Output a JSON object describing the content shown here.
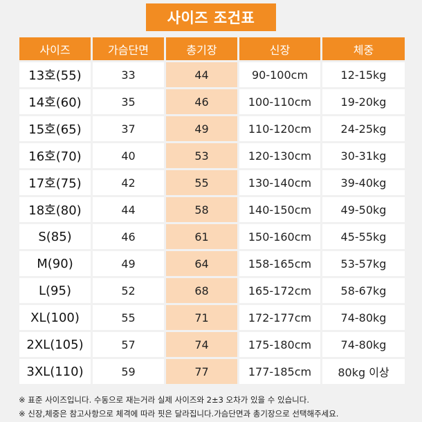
{
  "title": "사이즈 조건표",
  "columns": [
    "사이즈",
    "가슴단면",
    "총기장",
    "신장",
    "체중"
  ],
  "rows": [
    {
      "size": "13호(55)",
      "chest": "33",
      "length": "44",
      "height": "90-100cm",
      "weight": "12-15kg"
    },
    {
      "size": "14호(60)",
      "chest": "35",
      "length": "46",
      "height": "100-110cm",
      "weight": "19-20kg"
    },
    {
      "size": "15호(65)",
      "chest": "37",
      "length": "49",
      "height": "110-120cm",
      "weight": "24-25kg"
    },
    {
      "size": "16호(70)",
      "chest": "40",
      "length": "53",
      "height": "120-130cm",
      "weight": "30-31kg"
    },
    {
      "size": "17호(75)",
      "chest": "42",
      "length": "55",
      "height": "130-140cm",
      "weight": "39-40kg"
    },
    {
      "size": "18호(80)",
      "chest": "44",
      "length": "58",
      "height": "140-150cm",
      "weight": "49-50kg"
    },
    {
      "size": "S(85)",
      "chest": "46",
      "length": "61",
      "height": "150-160cm",
      "weight": "45-55kg"
    },
    {
      "size": "M(90)",
      "chest": "49",
      "length": "64",
      "height": "158-165cm",
      "weight": "53-57kg"
    },
    {
      "size": "L(95)",
      "chest": "52",
      "length": "68",
      "height": "165-172cm",
      "weight": "58-67kg"
    },
    {
      "size": "XL(100)",
      "chest": "55",
      "length": "71",
      "height": "172-177cm",
      "weight": "74-80kg"
    },
    {
      "size": "2XL(105)",
      "chest": "57",
      "length": "74",
      "height": "175-180cm",
      "weight": "74-80kg"
    },
    {
      "size": "3XL(110)",
      "chest": "59",
      "length": "77",
      "height": "177-185cm",
      "weight": "80kg 이상"
    }
  ],
  "notes": [
    "※ 표준 사이즈입니다. 수동으로 재는거라 실제 사이즈와 2±3 오차가 있을 수 있습니다.",
    "※ 신장,체중은 참고사항으로 체격에 따라 핏은 달라집니다.가슴단면과 총기장으로 선택해주세요."
  ],
  "colors": {
    "accent": "#f28c22",
    "highlight_column": "#fbd8b7",
    "background": "#f1f1f1"
  }
}
